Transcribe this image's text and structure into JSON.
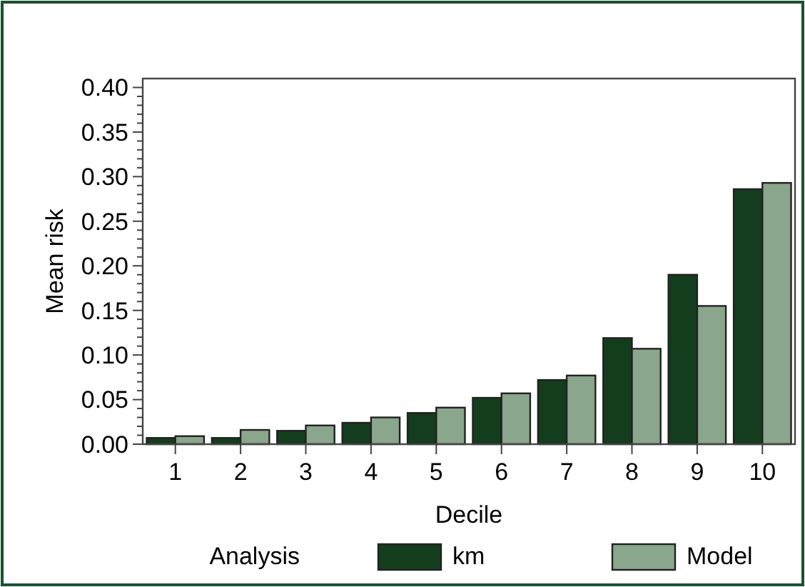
{
  "chart_data": {
    "type": "bar",
    "xlabel": "Decile",
    "ylabel": "Mean risk",
    "legend_title": "Analysis",
    "legend": "bottom",
    "categories": [
      "1",
      "2",
      "3",
      "4",
      "5",
      "6",
      "7",
      "8",
      "9",
      "10"
    ],
    "series": [
      {
        "name": "km",
        "color": "#143d1e",
        "values": [
          0.007,
          0.007,
          0.015,
          0.024,
          0.035,
          0.052,
          0.072,
          0.119,
          0.19,
          0.286
        ]
      },
      {
        "name": "Model",
        "color": "#8aa68c",
        "values": [
          0.009,
          0.016,
          0.021,
          0.03,
          0.041,
          0.057,
          0.077,
          0.107,
          0.155,
          0.293
        ]
      }
    ],
    "ylim": [
      0,
      0.41
    ],
    "yticks": [
      {
        "value": 0,
        "label": "0.00"
      },
      {
        "value": 0.05,
        "label": "0.05"
      },
      {
        "value": 0.1,
        "label": "0.10"
      },
      {
        "value": 0.15,
        "label": "0.15"
      },
      {
        "value": 0.2,
        "label": "0.20"
      },
      {
        "value": 0.25,
        "label": "0.25"
      },
      {
        "value": 0.3,
        "label": "0.30"
      },
      {
        "value": 0.35,
        "label": "0.35"
      },
      {
        "value": 0.4,
        "label": "0.40"
      }
    ],
    "grid": false
  }
}
